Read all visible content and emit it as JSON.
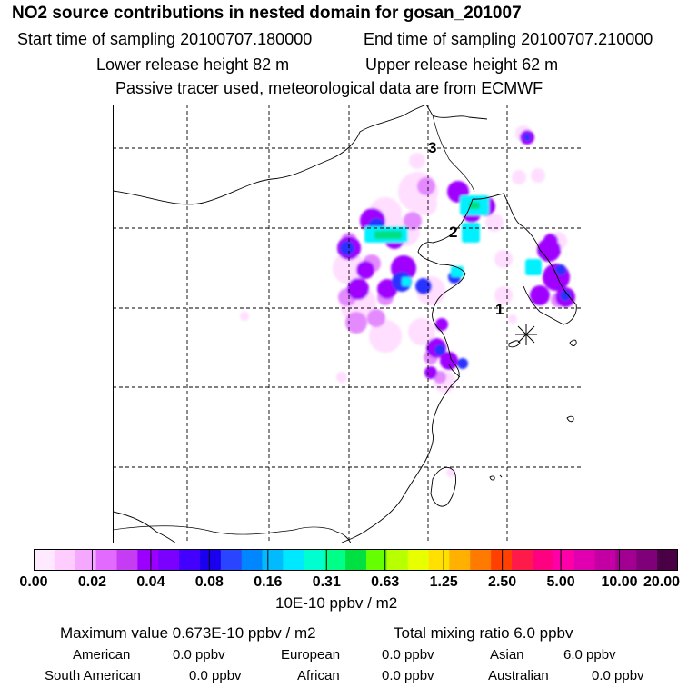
{
  "title": "NO2 source contributions in nested domain for gosan_201007",
  "header": {
    "start_label": "Start time of sampling 20100707.180000",
    "end_label": "End time of sampling 20100707.210000",
    "lower_release": "Lower release height   82 m",
    "upper_release": "Upper release height   62 m",
    "tracer_info": "Passive tracer used, meteorological data are from ECMWF"
  },
  "map": {
    "receptor_marker": "asterisk-icon",
    "labels": [
      "1",
      "2",
      "3"
    ]
  },
  "colorbar": {
    "colors": [
      "#ffe9ff",
      "#ffccff",
      "#f5a8ff",
      "#e26aff",
      "#c63cf5",
      "#9b00ff",
      "#7a00ff",
      "#4400ff",
      "#1a00ee",
      "#2a45ff",
      "#0087ff",
      "#00bcff",
      "#00e8ff",
      "#00ffd0",
      "#00ff88",
      "#00e040",
      "#66ff00",
      "#b8ff00",
      "#e8ff00",
      "#ffe000",
      "#ffb000",
      "#ff7a00",
      "#ff4000",
      "#ff1a4a",
      "#ff0080",
      "#ff00a8",
      "#e000b0",
      "#c400a4",
      "#a20090",
      "#80007a",
      "#4a0044"
    ],
    "ticks": [
      "0.00",
      "0.02",
      "0.04",
      "0.08",
      "0.16",
      "0.31",
      "0.63",
      "1.25",
      "2.50",
      "5.00",
      "10.00",
      "20.00"
    ],
    "units": "10E-10 ppbv / m2"
  },
  "footer": {
    "max_value": "Maximum value  0.673E-10 ppbv / m2",
    "total_mixing": "Total mixing ratio       6.0 ppbv",
    "regions": [
      {
        "name": "American",
        "value": "0.0 ppbv"
      },
      {
        "name": "European",
        "value": "0.0 ppbv"
      },
      {
        "name": "Asian",
        "value": "6.0 ppbv"
      },
      {
        "name": "South American",
        "value": "0.0 ppbv"
      },
      {
        "name": "African",
        "value": "0.0 ppbv"
      },
      {
        "name": "Australian",
        "value": "0.0 ppbv"
      }
    ]
  }
}
